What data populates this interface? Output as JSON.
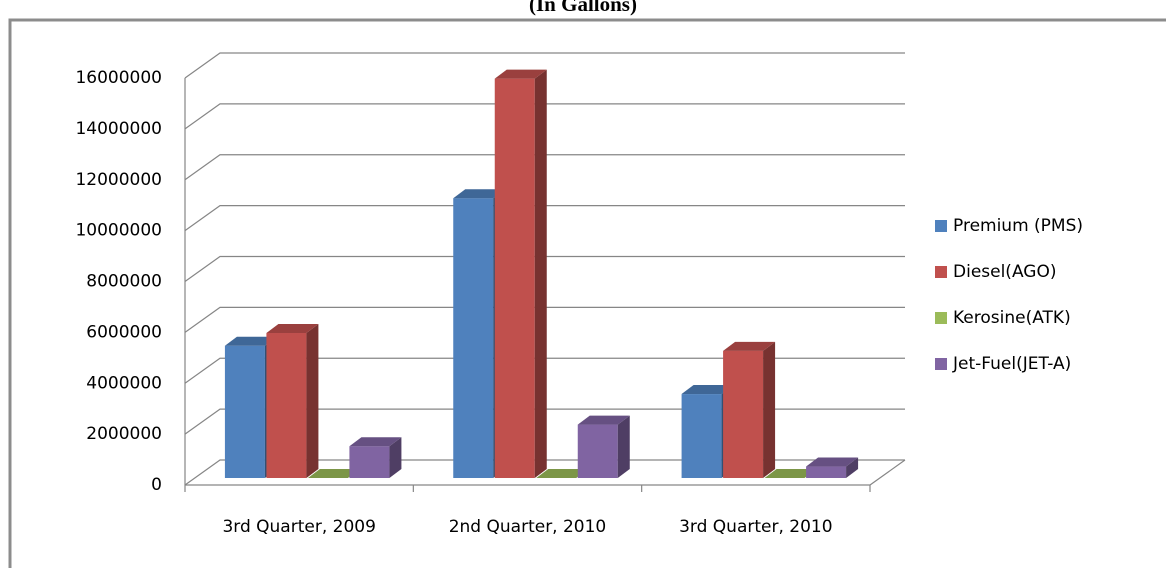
{
  "chart_data": {
    "type": "bar3d",
    "title": "(In Gallons)",
    "categories": [
      "3rd Quarter, 2009",
      "2nd Quarter, 2010",
      "3rd Quarter, 2010"
    ],
    "series": [
      {
        "name": "Premium (PMS)",
        "color": "#4f81bd",
        "values": [
          5200000,
          11000000,
          3300000
        ]
      },
      {
        "name": "Diesel(AGO)",
        "color": "#c0504d",
        "values": [
          5700000,
          15700000,
          5000000
        ]
      },
      {
        "name": "Kerosine(ATK)",
        "color": "#9bbb59",
        "values": [
          0,
          0,
          0
        ]
      },
      {
        "name": "Jet-Fuel(JET-A)",
        "color": "#8064a2",
        "values": [
          1250000,
          2100000,
          450000
        ]
      }
    ],
    "ylim": [
      0,
      16000000
    ],
    "yticks": [
      0,
      2000000,
      4000000,
      6000000,
      8000000,
      10000000,
      12000000,
      14000000,
      16000000
    ],
    "grid": true,
    "legend": "right"
  }
}
